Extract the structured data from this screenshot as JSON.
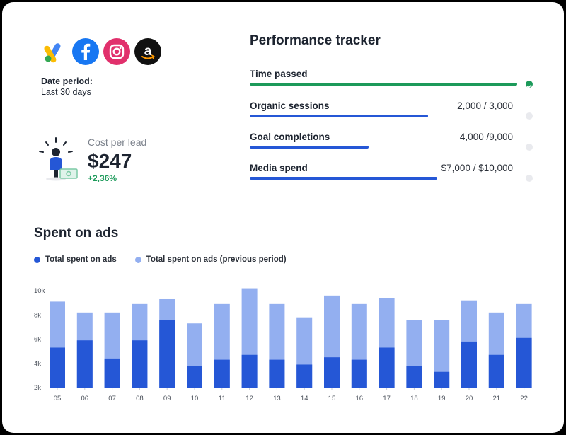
{
  "colors": {
    "primary_blue": "#2557d6",
    "light_blue": "#93aff0",
    "green": "#1c9a5a",
    "track_gray": "#e9eaee"
  },
  "logos": [
    {
      "name": "google-ads-icon"
    },
    {
      "name": "facebook-icon"
    },
    {
      "name": "instagram-icon"
    },
    {
      "name": "amazon-icon"
    }
  ],
  "date_period": {
    "label": "Date period:",
    "value": "Last 30 days"
  },
  "cost_per_lead": {
    "title": "Cost per lead",
    "value": "$247",
    "change": "+2,36%"
  },
  "tracker": {
    "title": "Performance tracker",
    "metrics": [
      {
        "label": "Time passed",
        "value": "",
        "progress": 1.0,
        "status": "complete"
      },
      {
        "label": "Organic sessions",
        "value": "2,000 / 3,000",
        "progress": 0.667,
        "status": "pending"
      },
      {
        "label": "Goal completions",
        "value": "4,000 /9,000",
        "progress": 0.444,
        "status": "pending"
      },
      {
        "label": "Media spend",
        "value": "$7,000 / $10,000",
        "progress": 0.7,
        "status": "pending"
      }
    ]
  },
  "chart_data": {
    "type": "bar",
    "title": "Spent on ads",
    "categories": [
      "05",
      "06",
      "07",
      "08",
      "09",
      "10",
      "11",
      "12",
      "13",
      "14",
      "15",
      "16",
      "17",
      "18",
      "19",
      "20",
      "21",
      "22"
    ],
    "series": [
      {
        "name": "Total spent on ads",
        "color": "#2557d6",
        "values": [
          5300,
          5900,
          4400,
          5900,
          7600,
          3800,
          4300,
          4700,
          4300,
          3900,
          4500,
          4300,
          5300,
          3800,
          3300,
          5800,
          4700,
          6100
        ]
      },
      {
        "name": "Total spent on ads (previous period)",
        "color": "#93aff0",
        "values": [
          9100,
          8200,
          8200,
          8900,
          9300,
          7300,
          8900,
          10200,
          8900,
          7800,
          9600,
          8900,
          9400,
          7600,
          7600,
          9200,
          8200,
          8900
        ]
      }
    ],
    "stacking": "overlay",
    "yticks": [
      "10k",
      "8k",
      "6k",
      "4k",
      "2k"
    ],
    "ytick_values": [
      10000,
      8000,
      6000,
      4000,
      2000
    ],
    "ylim": [
      2000,
      10000
    ],
    "legend_position": "top-left",
    "grid": false
  }
}
